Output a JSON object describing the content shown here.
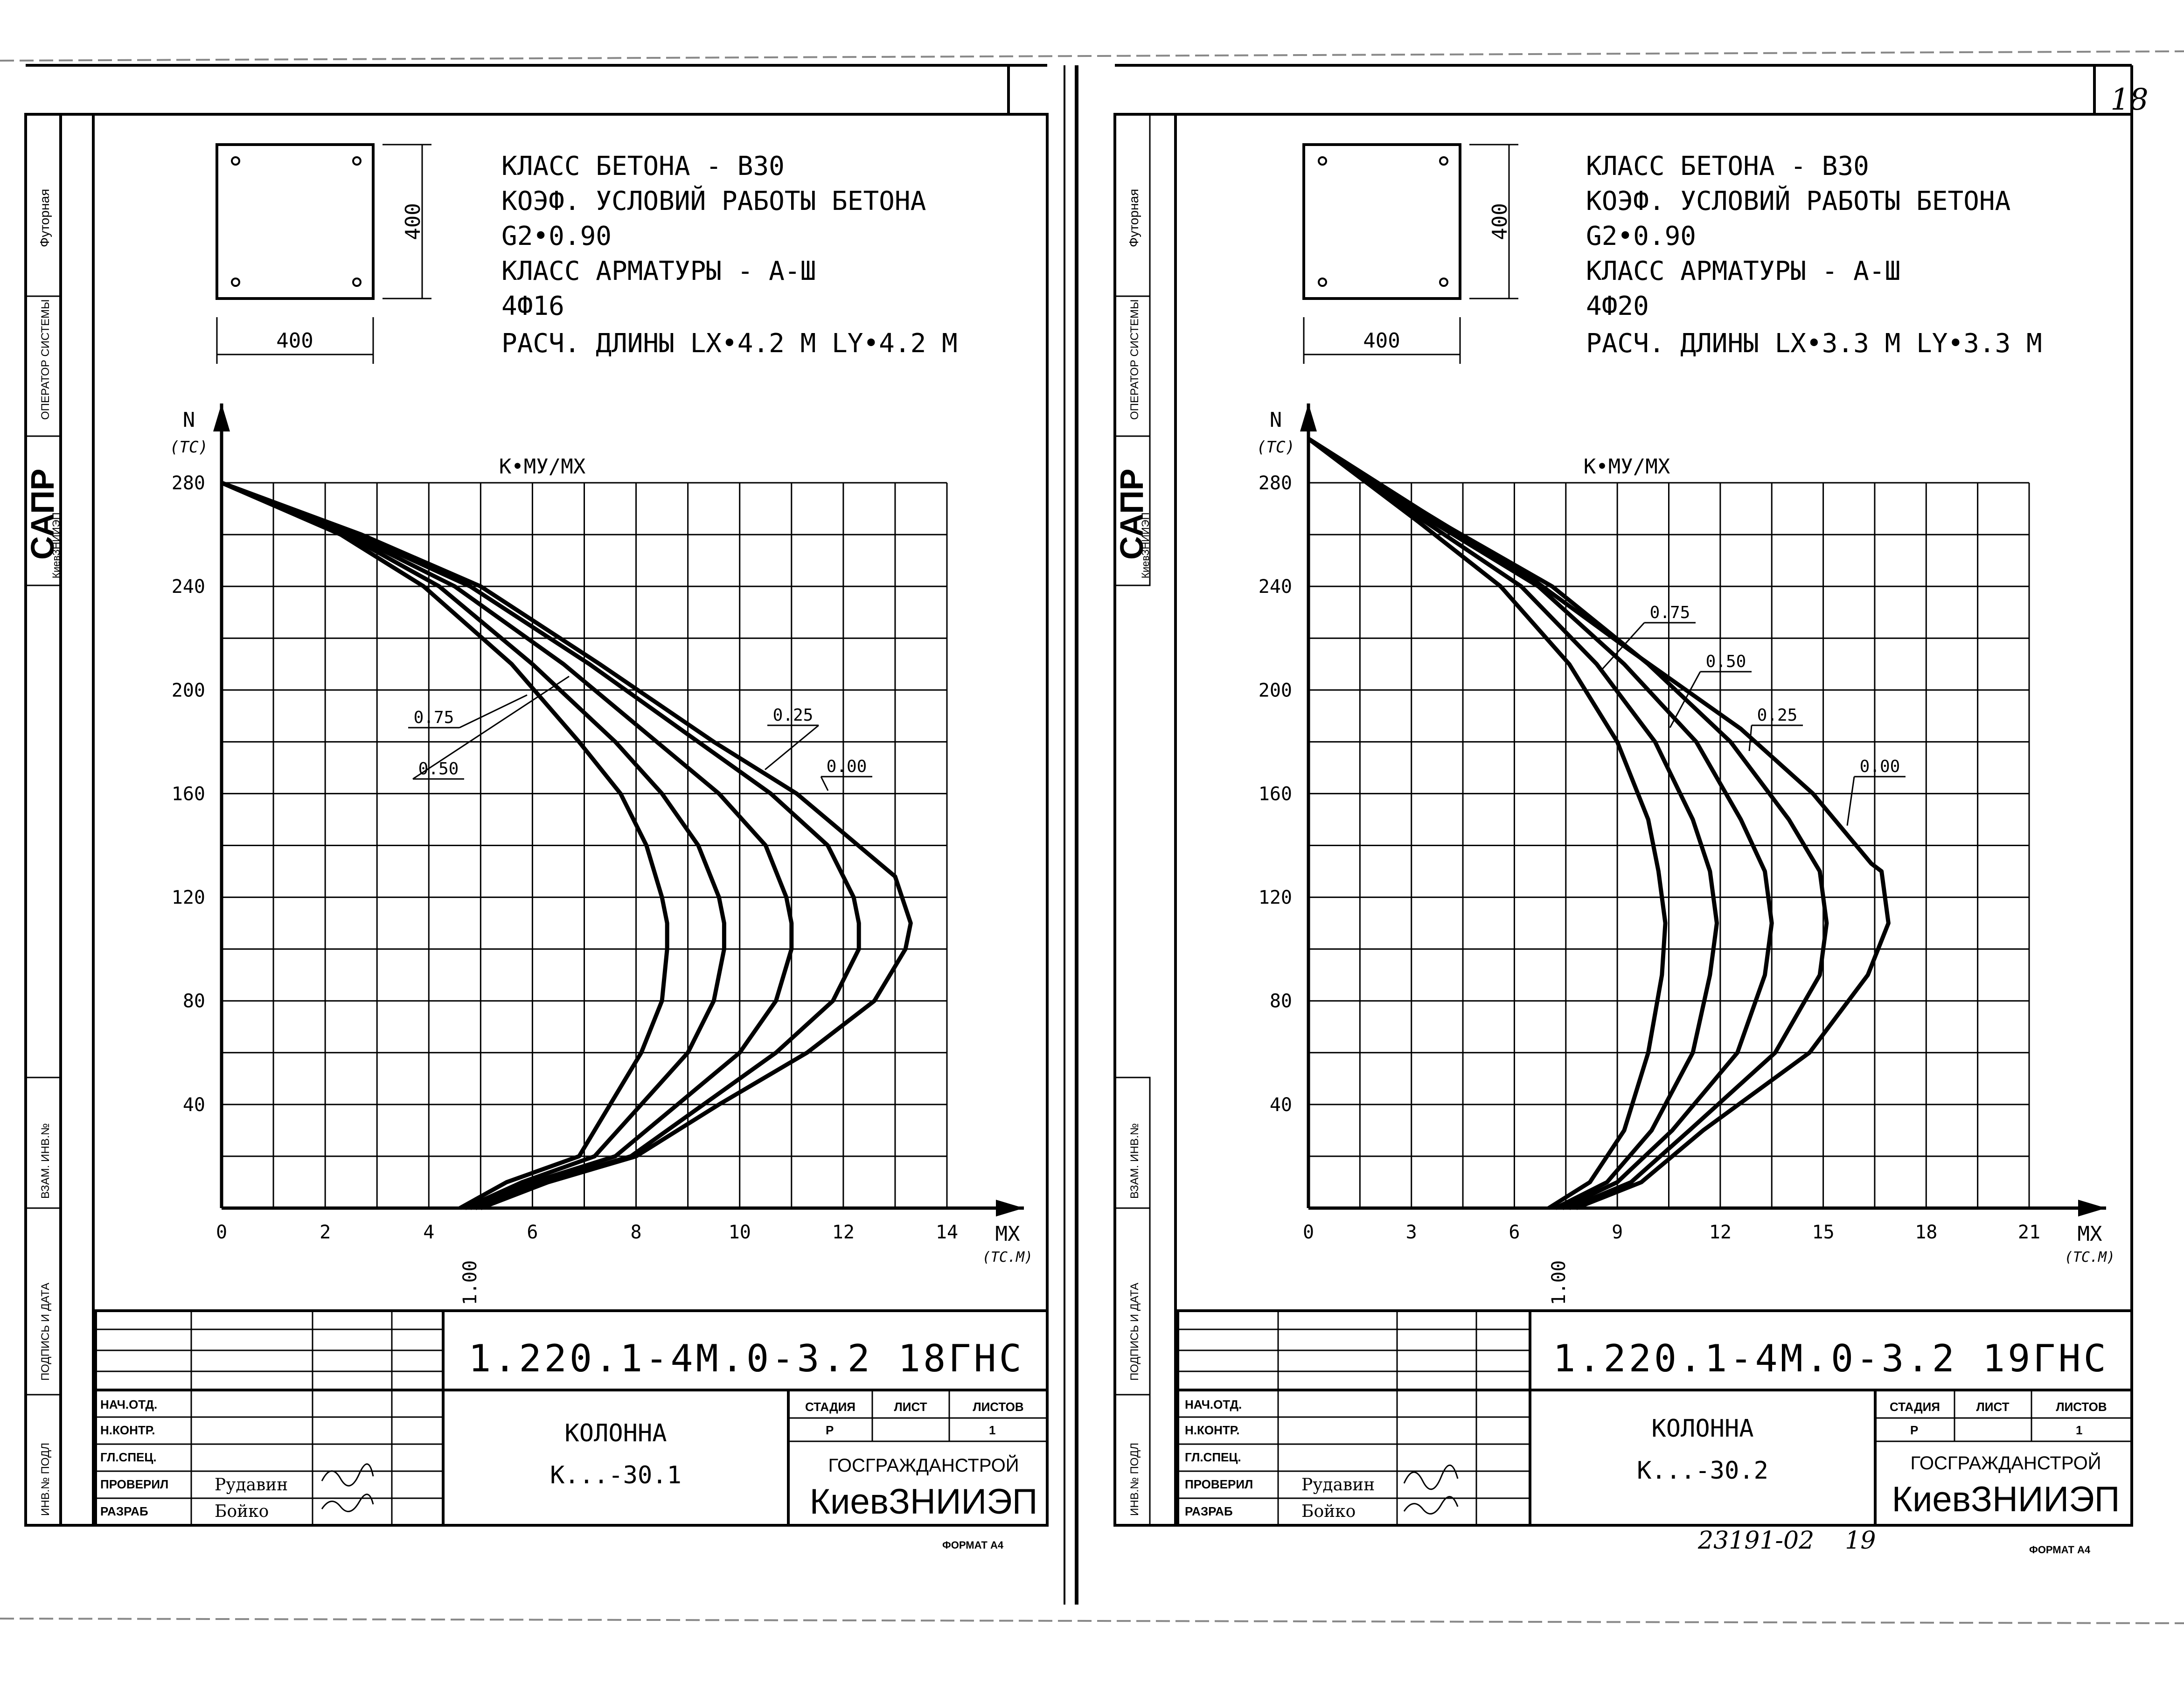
{
  "page_number": "18",
  "sheets": [
    {
      "id": "sheet1",
      "section": {
        "width_label": "400",
        "height_label": "400"
      },
      "spec_lines": [
        "КЛАСС БЕТОНА - В30",
        "КОЭФ. УСЛОВИЙ РАБОТЫ БЕТОНА",
        "G2•0.90",
        "КЛАСС АРМАТУРЫ - А-Ш",
        "4Ф16",
        "РАСЧ. ДЛИНЫ  LX•4.2 М  LY•4.2 М"
      ],
      "side_labels": {
        "futornaya": "Футорная",
        "operator": "ОПЕРАТОР СИСТЕМЫ",
        "sapr": "САПР",
        "sapr_sub": "КиевЗНИИЭП",
        "vzam": "ВЗАМ. ИНВ.№",
        "podpis": "ПОДПИСЬ И ДАТА",
        "inv": "ИНВ.№ ПОДЛ"
      },
      "title_block": {
        "code": "1.220.1-4М.0-3.2 18ГНС",
        "roles": [
          "НАЧ.ОТД.",
          "Н.КОНТР.",
          "ГЛ.СПЕЦ.",
          "ПРОВЕРИЛ",
          "РАЗРАБ"
        ],
        "names": [
          "",
          "",
          "",
          "Рудавин",
          "Бойко"
        ],
        "name_line1": "КОЛОННА",
        "name_line2": "К...-30.1",
        "stage_label": "СТАДИЯ",
        "sheet_label": "ЛИСТ",
        "sheets_label": "ЛИСТОВ",
        "stage_value": "Р",
        "sheet_value": "",
        "sheets_value": "1",
        "org_line1": "ГОСГРАЖДАНСТРОЙ",
        "org_line2": "КиевЗНИИЭП",
        "format": "ФОРМАТ А4",
        "bottom_note": ""
      }
    },
    {
      "id": "sheet2",
      "section": {
        "width_label": "400",
        "height_label": "400"
      },
      "spec_lines": [
        "КЛАСС БЕТОНА - В30",
        "КОЭФ. УСЛОВИЙ РАБОТЫ БЕТОНА",
        "G2•0.90",
        "КЛАСС АРМАТУРЫ - А-Ш",
        "4Ф20",
        "РАСЧ. ДЛИНЫ  LX•3.3 М  LY•3.3 М"
      ],
      "side_labels": {
        "futornaya": "Футорная",
        "operator": "ОПЕРАТОР СИСТЕМЫ",
        "sapr": "САПР",
        "sapr_sub": "КиевЗНИИЭП",
        "vzam": "ВЗАМ. ИНВ.№",
        "podpis": "ПОДПИСЬ И ДАТА",
        "inv": "ИНВ.№ ПОДЛ"
      },
      "title_block": {
        "code": "1.220.1-4М.0-3.2 19ГНС",
        "roles": [
          "НАЧ.ОТД.",
          "Н.КОНТР.",
          "ГЛ.СПЕЦ.",
          "ПРОВЕРИЛ",
          "РАЗРАБ"
        ],
        "names": [
          "",
          "",
          "",
          "Рудавин",
          "Бойко"
        ],
        "name_line1": "КОЛОННА",
        "name_line2": "К...-30.2",
        "stage_label": "СТАДИЯ",
        "sheet_label": "ЛИСТ",
        "sheets_label": "ЛИСТОВ",
        "stage_value": "Р",
        "sheet_value": "",
        "sheets_value": "1",
        "org_line1": "ГОСГРАЖДАНСТРОЙ",
        "org_line2": "КиевЗНИИЭП",
        "format": "ФОРМАТ А4",
        "bottom_note": "23191-02    19"
      }
    }
  ],
  "chart_data": [
    {
      "type": "line",
      "title": "К•МУ/МХ",
      "xlabel": "МХ",
      "xunit": "(ТС.М)",
      "ylabel": "N",
      "yunit": "(ТС)",
      "xlim": [
        0,
        14
      ],
      "ylim": [
        0,
        280
      ],
      "xticks": [
        0,
        2,
        4,
        6,
        8,
        10,
        12,
        14
      ],
      "xtick_labels": [
        "0",
        "2",
        "4",
        "6",
        "8",
        "10",
        "12",
        "14"
      ],
      "yticks": [
        40,
        80,
        120,
        160,
        200,
        240,
        280
      ],
      "ytick_labels": [
        "40",
        "80",
        "120",
        "160",
        "200",
        "240",
        "280"
      ],
      "bottom_series_label": "1.00",
      "series": [
        {
          "name": "1.00",
          "points": [
            [
              4.6,
              0
            ],
            [
              5.5,
              10
            ],
            [
              6.9,
              20
            ],
            [
              7.5,
              40
            ],
            [
              8.1,
              60
            ],
            [
              8.5,
              80
            ],
            [
              8.6,
              100
            ],
            [
              8.6,
              110
            ],
            [
              8.5,
              120
            ],
            [
              8.2,
              140
            ],
            [
              7.7,
              160
            ],
            [
              6.9,
              180
            ],
            [
              5.6,
              210
            ],
            [
              3.9,
              240
            ],
            [
              2.3,
              260
            ],
            [
              0,
              280
            ]
          ]
        },
        {
          "name": "0.75",
          "points": [
            [
              4.7,
              0
            ],
            [
              5.8,
              10
            ],
            [
              7.2,
              20
            ],
            [
              8.1,
              40
            ],
            [
              9.0,
              60
            ],
            [
              9.5,
              80
            ],
            [
              9.7,
              100
            ],
            [
              9.7,
              110
            ],
            [
              9.6,
              120
            ],
            [
              9.2,
              140
            ],
            [
              8.5,
              160
            ],
            [
              7.6,
              180
            ],
            [
              6.0,
              210
            ],
            [
              4.2,
              240
            ],
            [
              2.4,
              260
            ],
            [
              0,
              280
            ]
          ]
        },
        {
          "name": "0.50",
          "points": [
            [
              4.8,
              0
            ],
            [
              6.0,
              10
            ],
            [
              7.6,
              20
            ],
            [
              8.8,
              40
            ],
            [
              10.0,
              60
            ],
            [
              10.7,
              80
            ],
            [
              11.0,
              100
            ],
            [
              11.0,
              110
            ],
            [
              10.9,
              120
            ],
            [
              10.5,
              140
            ],
            [
              9.6,
              160
            ],
            [
              8.4,
              180
            ],
            [
              6.6,
              210
            ],
            [
              4.5,
              240
            ],
            [
              2.5,
              260
            ],
            [
              0,
              280
            ]
          ]
        },
        {
          "name": "0.25",
          "points": [
            [
              4.9,
              0
            ],
            [
              6.2,
              10
            ],
            [
              7.9,
              20
            ],
            [
              9.3,
              40
            ],
            [
              10.7,
              60
            ],
            [
              11.8,
              80
            ],
            [
              12.3,
              100
            ],
            [
              12.3,
              110
            ],
            [
              12.2,
              120
            ],
            [
              11.7,
              140
            ],
            [
              10.6,
              160
            ],
            [
              9.2,
              180
            ],
            [
              7.1,
              210
            ],
            [
              4.8,
              240
            ],
            [
              2.6,
              260
            ],
            [
              0,
              280
            ]
          ]
        },
        {
          "name": "0.00",
          "points": [
            [
              5.0,
              0
            ],
            [
              6.3,
              10
            ],
            [
              8.0,
              20
            ],
            [
              9.6,
              40
            ],
            [
              11.3,
              60
            ],
            [
              12.6,
              80
            ],
            [
              13.2,
              100
            ],
            [
              13.3,
              110
            ],
            [
              13.0,
              128
            ],
            [
              11.1,
              160
            ],
            [
              9.5,
              180
            ],
            [
              7.3,
              210
            ],
            [
              5.0,
              240
            ],
            [
              2.7,
              260
            ],
            [
              0,
              280
            ]
          ]
        }
      ]
    },
    {
      "type": "line",
      "title": "К•МУ/МХ",
      "xlabel": "МХ",
      "xunit": "(ТС.М)",
      "ylabel": "N",
      "yunit": "(ТС)",
      "xlim": [
        0,
        21
      ],
      "ylim": [
        0,
        280
      ],
      "xticks": [
        0,
        3,
        6,
        9,
        12,
        15,
        18,
        21
      ],
      "xtick_labels": [
        "0",
        "3",
        "6",
        "9",
        "12",
        "15",
        "18",
        "21"
      ],
      "yticks": [
        40,
        80,
        120,
        160,
        200,
        240,
        280
      ],
      "ytick_labels": [
        "40",
        "80",
        "120",
        "160",
        "200",
        "240",
        "280"
      ],
      "bottom_series_label": "1.00",
      "series": [
        {
          "name": "1.00",
          "points": [
            [
              7.0,
              0
            ],
            [
              8.2,
              10
            ],
            [
              9.2,
              30
            ],
            [
              9.9,
              60
            ],
            [
              10.3,
              90
            ],
            [
              10.4,
              110
            ],
            [
              10.2,
              130
            ],
            [
              9.9,
              150
            ],
            [
              9.0,
              180
            ],
            [
              7.6,
              210
            ],
            [
              5.6,
              240
            ],
            [
              3.2,
              265
            ],
            [
              0,
              297
            ]
          ]
        },
        {
          "name": "0.75",
          "points": [
            [
              7.2,
              0
            ],
            [
              8.7,
              10
            ],
            [
              10.0,
              30
            ],
            [
              11.2,
              60
            ],
            [
              11.7,
              90
            ],
            [
              11.9,
              110
            ],
            [
              11.7,
              130
            ],
            [
              11.2,
              150
            ],
            [
              10.1,
              180
            ],
            [
              8.4,
              210
            ],
            [
              6.2,
              240
            ],
            [
              3.4,
              265
            ],
            [
              0,
              297
            ]
          ]
        },
        {
          "name": "0.50",
          "points": [
            [
              7.4,
              0
            ],
            [
              9.0,
              10
            ],
            [
              10.6,
              30
            ],
            [
              12.5,
              60
            ],
            [
              13.3,
              90
            ],
            [
              13.5,
              110
            ],
            [
              13.3,
              130
            ],
            [
              12.6,
              150
            ],
            [
              11.3,
              180
            ],
            [
              9.2,
              210
            ],
            [
              6.7,
              240
            ],
            [
              3.6,
              265
            ],
            [
              0,
              297
            ]
          ]
        },
        {
          "name": "0.25",
          "points": [
            [
              7.6,
              0
            ],
            [
              9.4,
              10
            ],
            [
              11.1,
              30
            ],
            [
              13.6,
              60
            ],
            [
              14.9,
              90
            ],
            [
              15.1,
              110
            ],
            [
              14.9,
              130
            ],
            [
              14.0,
              150
            ],
            [
              12.3,
              180
            ],
            [
              9.9,
              210
            ],
            [
              7.1,
              240
            ],
            [
              3.8,
              265
            ],
            [
              0,
              297
            ]
          ]
        },
        {
          "name": "0.00",
          "points": [
            [
              7.8,
              0
            ],
            [
              9.7,
              10
            ],
            [
              11.5,
              30
            ],
            [
              14.6,
              60
            ],
            [
              16.3,
              90
            ],
            [
              16.9,
              110
            ],
            [
              16.7,
              130
            ],
            [
              16.4,
              133
            ],
            [
              14.7,
              160
            ],
            [
              12.6,
              185
            ],
            [
              9.4,
              215
            ],
            [
              6.3,
              245
            ],
            [
              3.2,
              270
            ],
            [
              0,
              297
            ]
          ]
        }
      ]
    }
  ]
}
